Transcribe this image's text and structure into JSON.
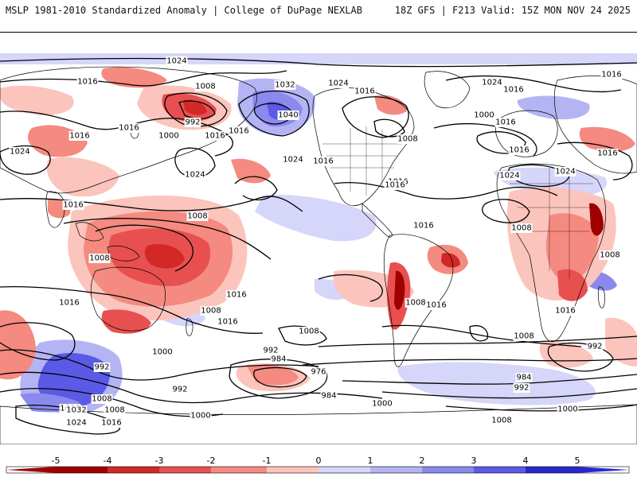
{
  "header": {
    "left_title": "MSLP 1981-2010 Standardized Anomaly | College of DuPage NEXLAB",
    "right_title": "18Z GFS | F213 Valid: 15Z MON NOV 24 2025"
  },
  "colors": {
    "neg5": "#a00000",
    "neg4": "#d22828",
    "neg3": "#e85050",
    "neg2": "#f48a80",
    "neg1": "#fbc4bc",
    "pos1": "#d6d6fa",
    "pos2": "#b4b4f4",
    "pos3": "#8a8aee",
    "pos4": "#5a5ae6",
    "pos5": "#2828d0",
    "contour": "#000000",
    "coast": "#000000"
  },
  "colorbar": {
    "ticks": [
      "-5",
      "-4",
      "-3",
      "-2",
      "-1",
      "0",
      "1",
      "2",
      "3",
      "4",
      "5"
    ]
  },
  "isobar_labels": [
    {
      "text": "1024"
    },
    {
      "text": "1016"
    },
    {
      "text": "1008"
    },
    {
      "text": "992"
    },
    {
      "text": "1000"
    },
    {
      "text": "1016"
    },
    {
      "text": "1016"
    },
    {
      "text": "1024"
    },
    {
      "text": "1016"
    },
    {
      "text": "1024"
    },
    {
      "text": "1016"
    },
    {
      "text": "1032"
    },
    {
      "text": "1040"
    },
    {
      "text": "1024"
    },
    {
      "text": "1024"
    },
    {
      "text": "1016"
    },
    {
      "text": "1008"
    },
    {
      "text": "1024"
    },
    {
      "text": "1016"
    },
    {
      "text": "1016"
    },
    {
      "text": "1000"
    },
    {
      "text": "1024"
    },
    {
      "text": "1016"
    },
    {
      "text": "1016"
    },
    {
      "text": "1016"
    },
    {
      "text": "1024"
    },
    {
      "text": "1016"
    },
    {
      "text": "1016"
    },
    {
      "text": "1008"
    },
    {
      "text": "1008"
    },
    {
      "text": "1008"
    },
    {
      "text": "1016"
    },
    {
      "text": "1008"
    },
    {
      "text": "1016"
    },
    {
      "text": "1016"
    },
    {
      "text": "1016"
    },
    {
      "text": "1016"
    },
    {
      "text": "1008"
    },
    {
      "text": "1016"
    },
    {
      "text": "1016"
    },
    {
      "text": "1016"
    },
    {
      "text": "1008"
    },
    {
      "text": "1000"
    },
    {
      "text": "992"
    },
    {
      "text": "1008"
    },
    {
      "text": "1000"
    },
    {
      "text": "1008"
    },
    {
      "text": "1008"
    },
    {
      "text": "992"
    },
    {
      "text": "1032"
    },
    {
      "text": "1024"
    },
    {
      "text": "1016"
    },
    {
      "text": "992"
    },
    {
      "text": "984"
    },
    {
      "text": "976"
    },
    {
      "text": "984"
    },
    {
      "text": "1000"
    },
    {
      "text": "1008"
    },
    {
      "text": "992"
    },
    {
      "text": "1000"
    },
    {
      "text": "1008"
    },
    {
      "text": "984"
    },
    {
      "text": "992"
    },
    {
      "text": "1000"
    }
  ]
}
